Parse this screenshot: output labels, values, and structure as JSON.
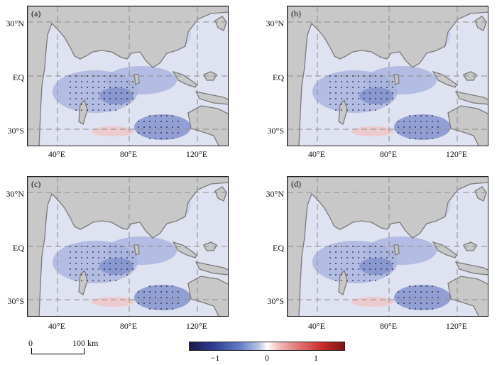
{
  "panels": [
    {
      "label": "(a)",
      "lat_labels": [
        "30°N",
        "EQ",
        "30°S"
      ],
      "lon_labels": [
        "40°E",
        "80°E",
        "120°E"
      ]
    },
    {
      "label": "(b)",
      "lat_labels": [
        "30°N",
        "EQ",
        "30°S"
      ],
      "lon_labels": [
        "40°E",
        "80°E",
        "120°E"
      ]
    },
    {
      "label": "(c)",
      "lat_labels": [
        "30°N",
        "EQ",
        "30°S"
      ],
      "lon_labels": [
        "40°E",
        "80°E",
        "120°E"
      ]
    },
    {
      "label": "(d)",
      "lat_labels": [
        "30°N",
        "EQ",
        "30°S"
      ],
      "lon_labels": [
        "40°E",
        "80°E",
        "120°E"
      ]
    }
  ],
  "scale_bar": {
    "start": "0",
    "end": "100 km"
  },
  "colorbar": {
    "ticks": [
      "−1",
      "0",
      "1"
    ],
    "colors": [
      "#1a1a48",
      "#2c3a8f",
      "#5f7bc6",
      "#b9c6e7",
      "#ffffff",
      "#f1b9b9",
      "#e06b6b",
      "#c72626",
      "#7a1616"
    ]
  },
  "colors": {
    "land": "#c8c8c8",
    "coast": "#7a7a7a",
    "ocean_light": "#dfe2f1",
    "ocean_mid": "#a7b3de",
    "ocean_dark": "#7e8fcd",
    "warm": "#f0c4c6",
    "grid": "#8c8c8c"
  }
}
